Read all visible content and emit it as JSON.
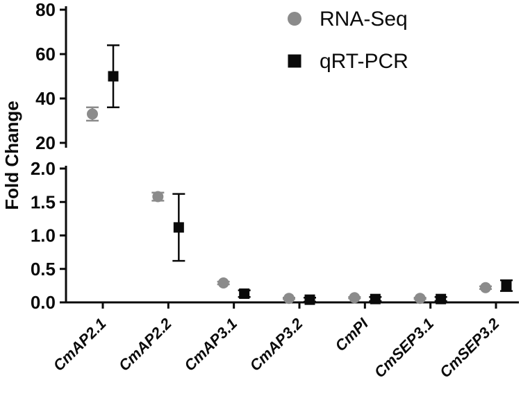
{
  "figure": {
    "background": "#ffffff"
  },
  "chart_data": {
    "type": "scatter",
    "title": "",
    "xlabel": "",
    "ylabel": "Fold Change",
    "grid": false,
    "legend_position": "top-center-right",
    "categories": [
      "CmAP2.1",
      "CmAP2.2",
      "CmAP3.1",
      "CmAP3.2",
      "CmPI",
      "CmSEP3.1",
      "CmSEP3.2"
    ],
    "y_axis": {
      "label": "Fold Change",
      "broken": true,
      "segments": [
        {
          "name": "upper",
          "range": [
            20,
            80
          ],
          "ticks": [
            20,
            40,
            60,
            80
          ],
          "tick_labels": [
            "20",
            "40",
            "60",
            "80"
          ]
        },
        {
          "name": "lower",
          "range": [
            0,
            2
          ],
          "ticks": [
            0,
            0.5,
            1,
            1.5,
            2
          ],
          "tick_labels": [
            "0.0",
            "0.5",
            "1.0",
            "1.5",
            "2.0"
          ]
        }
      ]
    },
    "series": [
      {
        "name": "RNA-Seq",
        "marker": "circle",
        "color": "#8b8b8b",
        "values": [
          33,
          1.58,
          0.29,
          0.06,
          0.07,
          0.06,
          0.22
        ],
        "errors": [
          3,
          0.06,
          0.02,
          0.01,
          0.01,
          0.01,
          0.02
        ]
      },
      {
        "name": "qRT-PCR",
        "marker": "square",
        "color": "#0a0a0a",
        "values": [
          50,
          1.12,
          0.13,
          0.04,
          0.05,
          0.05,
          0.25
        ],
        "errors": [
          14,
          0.5,
          0.05,
          0.03,
          0.03,
          0.03,
          0.08
        ]
      }
    ]
  }
}
